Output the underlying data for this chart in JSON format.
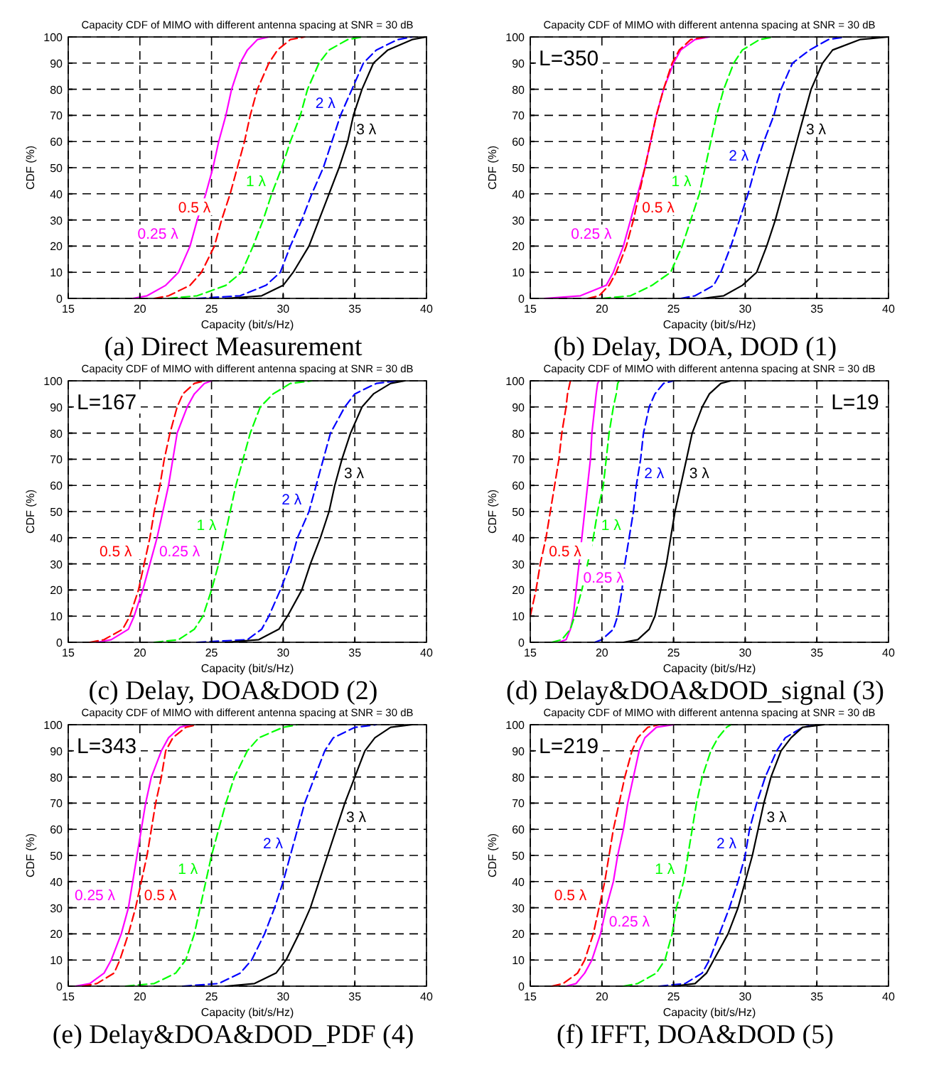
{
  "chart_data": [
    {
      "type": "line",
      "title": "Capacity CDF of MIMO with different antenna spacing at SNR = 30 dB",
      "subtitle": "(a) Direct Measurement",
      "xlabel": "Capacity (bit/s/Hz)",
      "ylabel": "CDF (%)",
      "xlim": [
        15,
        40
      ],
      "ylim": [
        0,
        100
      ],
      "xticks": [
        15,
        20,
        25,
        30,
        35,
        40
      ],
      "yticks": [
        0,
        10,
        20,
        30,
        40,
        50,
        60,
        70,
        80,
        90,
        100
      ],
      "grid": true,
      "series": [
        {
          "name": "0.25 λ",
          "color": "#ff00ff",
          "line_style": "solid",
          "x": [
            19.5,
            20.5,
            21.8,
            22.7,
            23.5,
            24,
            24.6,
            25.1,
            25.5,
            26,
            26.4,
            27,
            27.5,
            28.2,
            29
          ],
          "values": [
            0,
            1,
            5,
            10,
            20,
            30,
            40,
            50,
            60,
            70,
            80,
            90,
            95,
            99,
            100
          ]
        },
        {
          "name": "0.5 λ",
          "color": "#ff0000",
          "line_style": "dashed",
          "x": [
            21,
            22,
            23.5,
            24.3,
            25.2,
            25.7,
            26.3,
            26.8,
            27.3,
            27.7,
            28.2,
            29,
            29.6,
            30.5,
            31.5
          ],
          "values": [
            0,
            1,
            5,
            10,
            20,
            30,
            40,
            50,
            60,
            70,
            80,
            90,
            95,
            99,
            100
          ]
        },
        {
          "name": "1 λ",
          "color": "#00ff00",
          "line_style": "dashed",
          "x": [
            22,
            24,
            26,
            27.1,
            27.9,
            28.6,
            29.2,
            29.9,
            30.5,
            31.2,
            31.7,
            32.5,
            33.2,
            34.5,
            35.5
          ],
          "values": [
            0,
            1,
            5,
            10,
            20,
            30,
            40,
            50,
            60,
            70,
            80,
            90,
            95,
            99,
            100
          ]
        },
        {
          "name": "2 λ",
          "color": "#0000ff",
          "line_style": "dashed",
          "x": [
            24,
            27,
            28.8,
            29.8,
            30.5,
            31.3,
            32,
            32.8,
            33.4,
            34,
            34.8,
            35.6,
            36.5,
            38,
            39
          ],
          "values": [
            0,
            1,
            5,
            10,
            20,
            30,
            40,
            50,
            60,
            70,
            80,
            90,
            95,
            99,
            100
          ]
        },
        {
          "name": "3 λ",
          "color": "#000000",
          "line_style": "solid",
          "x": [
            26,
            28.5,
            30,
            30.7,
            31.8,
            32.5,
            33.2,
            33.9,
            34.5,
            34.9,
            35.5,
            36.3,
            37.3,
            39,
            40
          ],
          "values": [
            0,
            1,
            5,
            10,
            20,
            30,
            40,
            50,
            60,
            70,
            80,
            90,
            95,
            99,
            100
          ]
        }
      ]
    },
    {
      "type": "line",
      "title": "Capacity CDF of MIMO with different antenna spacing at SNR = 30 dB",
      "subtitle": "(b) Delay, DOA, DOD (1)",
      "xlabel": "Capacity (bit/s/Hz)",
      "ylabel": "CDF (%)",
      "xlim": [
        15,
        40
      ],
      "ylim": [
        0,
        100
      ],
      "xticks": [
        15,
        20,
        25,
        30,
        35,
        40
      ],
      "yticks": [
        0,
        10,
        20,
        30,
        40,
        50,
        60,
        70,
        80,
        90,
        100
      ],
      "grid": true,
      "annotations": [
        "L=350"
      ],
      "series": [
        {
          "name": "0.25 λ",
          "color": "#ff00ff",
          "line_style": "solid",
          "x": [
            16,
            18.5,
            20.3,
            20.8,
            21.5,
            22,
            22.5,
            23,
            23.4,
            23.8,
            24.3,
            25,
            25.5,
            26.5,
            27.5
          ],
          "values": [
            0,
            1,
            5,
            10,
            20,
            30,
            40,
            50,
            60,
            70,
            80,
            90,
            95,
            99,
            100
          ]
        },
        {
          "name": "0.5 λ",
          "color": "#ff0000",
          "line_style": "dashed",
          "x": [
            19,
            19.8,
            20.5,
            21,
            21.7,
            22.2,
            22.6,
            23,
            23.4,
            23.8,
            24.3,
            24.9,
            25.4,
            26.2,
            27.2
          ],
          "values": [
            0,
            1,
            5,
            10,
            20,
            30,
            40,
            50,
            60,
            70,
            80,
            90,
            95,
            99,
            100
          ]
        },
        {
          "name": "1 λ",
          "color": "#00ff00",
          "line_style": "dashed",
          "x": [
            20,
            22,
            23.5,
            24.8,
            25.6,
            26.2,
            26.8,
            27.2,
            27.6,
            28,
            28.5,
            29.2,
            29.8,
            31,
            32
          ],
          "values": [
            0,
            1,
            5,
            10,
            20,
            30,
            40,
            50,
            60,
            70,
            80,
            90,
            95,
            99,
            100
          ]
        },
        {
          "name": "2 λ",
          "color": "#0000ff",
          "line_style": "dashed",
          "x": [
            25.5,
            26.5,
            27.8,
            28.3,
            29,
            29.6,
            30.2,
            30.7,
            31.3,
            32,
            32.5,
            33.3,
            34.5,
            35.8,
            37
          ],
          "values": [
            0,
            1,
            5,
            10,
            20,
            30,
            40,
            50,
            60,
            70,
            80,
            90,
            95,
            99,
            100
          ]
        },
        {
          "name": "3 λ",
          "color": "#000000",
          "line_style": "solid",
          "x": [
            27,
            28.5,
            29.8,
            30.8,
            31.5,
            32.1,
            32.6,
            33.1,
            33.6,
            34.1,
            34.6,
            35.4,
            36.1,
            38,
            40
          ],
          "values": [
            0,
            1,
            5,
            10,
            20,
            30,
            40,
            50,
            60,
            70,
            80,
            90,
            95,
            99,
            100
          ]
        }
      ]
    },
    {
      "type": "line",
      "title": "Capacity CDF of MIMO with different antenna spacing at SNR = 30 dB",
      "subtitle": "(c) Delay, DOA&DOD (2)",
      "xlabel": "Capacity (bit/s/Hz)",
      "ylabel": "CDF (%)",
      "xlim": [
        15,
        40
      ],
      "ylim": [
        0,
        100
      ],
      "xticks": [
        15,
        20,
        25,
        30,
        35,
        40
      ],
      "yticks": [
        0,
        10,
        20,
        30,
        40,
        50,
        60,
        70,
        80,
        90,
        100
      ],
      "grid": true,
      "annotations": [
        "L=167"
      ],
      "series": [
        {
          "name": "0.25 λ",
          "color": "#ff00ff",
          "line_style": "solid",
          "x": [
            17,
            18,
            19.2,
            19.6,
            20.2,
            20.7,
            21.2,
            21.6,
            22,
            22.3,
            22.6,
            23.3,
            23.8,
            24.5,
            25
          ],
          "values": [
            0,
            1,
            5,
            10,
            20,
            30,
            40,
            50,
            60,
            70,
            80,
            90,
            95,
            99,
            100
          ]
        },
        {
          "name": "0.5 λ",
          "color": "#ff0000",
          "line_style": "dashed",
          "x": [
            16.5,
            17.5,
            18.8,
            19.3,
            19.9,
            20.3,
            20.7,
            21,
            21.4,
            21.7,
            22.1,
            22.6,
            23,
            23.8,
            24.5
          ],
          "values": [
            0,
            1,
            5,
            10,
            20,
            30,
            40,
            50,
            60,
            70,
            80,
            90,
            95,
            99,
            100
          ]
        },
        {
          "name": "1 λ",
          "color": "#00ff00",
          "line_style": "dashed",
          "x": [
            21,
            22.7,
            23.8,
            24.4,
            25,
            25.5,
            25.9,
            26.3,
            26.7,
            27.2,
            27.7,
            28.4,
            29.3,
            30.5,
            32
          ],
          "values": [
            0,
            1,
            5,
            10,
            20,
            30,
            40,
            50,
            60,
            70,
            80,
            90,
            95,
            99,
            100
          ]
        },
        {
          "name": "2 λ",
          "color": "#0000ff",
          "line_style": "dashed",
          "x": [
            24,
            27.5,
            28.5,
            29,
            29.8,
            30.5,
            31,
            31.8,
            32.3,
            32.8,
            33.3,
            34.3,
            35,
            36.5,
            38
          ],
          "values": [
            0,
            1,
            5,
            10,
            20,
            30,
            40,
            50,
            60,
            70,
            80,
            90,
            95,
            99,
            100
          ]
        },
        {
          "name": "3 λ",
          "color": "#000000",
          "line_style": "solid",
          "x": [
            26,
            28.3,
            29.7,
            30.3,
            31.3,
            31.9,
            32.6,
            33.2,
            33.6,
            34.1,
            34.7,
            35.5,
            36.3,
            37.5,
            38.5
          ],
          "values": [
            0,
            1,
            5,
            10,
            20,
            30,
            40,
            50,
            60,
            70,
            80,
            90,
            95,
            99,
            100
          ]
        }
      ]
    },
    {
      "type": "line",
      "title": "Capacity CDF of MIMO with different antenna spacing at SNR = 30 dB",
      "subtitle": "(d) Delay&DOA&DOD_signal (3)",
      "xlabel": "Capacity (bit/s/Hz)",
      "ylabel": "CDF (%)",
      "xlim": [
        15,
        40
      ],
      "ylim": [
        0,
        100
      ],
      "xticks": [
        15,
        20,
        25,
        30,
        35,
        40
      ],
      "yticks": [
        0,
        10,
        20,
        30,
        40,
        50,
        60,
        70,
        80,
        90,
        100
      ],
      "grid": true,
      "annotations": [
        "L=19"
      ],
      "series": [
        {
          "name": "0.25 λ",
          "color": "#ff00ff",
          "line_style": "solid",
          "x": [
            17,
            17.5,
            17.8,
            18,
            18.2,
            18.4,
            18.6,
            18.8,
            19,
            19.2,
            19.3,
            19.5,
            19.6,
            19.7,
            19.8
          ],
          "values": [
            0,
            1,
            5,
            10,
            20,
            30,
            40,
            50,
            60,
            70,
            80,
            90,
            95,
            99,
            100
          ]
        },
        {
          "name": "0.5 λ",
          "color": "#ff0000",
          "line_style": "dashed",
          "x": [
            15,
            15.4,
            15.7,
            16.1,
            16.4,
            16.7,
            17,
            17.2,
            17.5,
            17.6,
            17.8
          ],
          "values": [
            10,
            20,
            30,
            40,
            50,
            60,
            70,
            80,
            90,
            95,
            100
          ]
        },
        {
          "name": "1 λ",
          "color": "#00ff00",
          "line_style": "dashed",
          "x": [
            16.5,
            17.2,
            17.8,
            18.1,
            18.6,
            19,
            19.4,
            19.7,
            20.1,
            20.3,
            20.5,
            20.8,
            21,
            21.1,
            21.2
          ],
          "values": [
            0,
            1,
            5,
            10,
            20,
            30,
            40,
            50,
            60,
            70,
            80,
            90,
            95,
            99,
            100
          ]
        },
        {
          "name": "2 λ",
          "color": "#0000ff",
          "line_style": "dashed",
          "x": [
            19.5,
            20,
            20.8,
            21.1,
            21.4,
            21.6,
            21.9,
            22.2,
            22.4,
            22.7,
            22.9,
            23.3,
            23.7,
            24.3,
            25
          ],
          "values": [
            0,
            1,
            5,
            10,
            20,
            30,
            40,
            50,
            60,
            70,
            80,
            90,
            95,
            99,
            100
          ]
        },
        {
          "name": "3 λ",
          "color": "#000000",
          "line_style": "solid",
          "x": [
            21.5,
            22.5,
            23.3,
            23.7,
            24.1,
            24.5,
            24.8,
            25.1,
            25.5,
            25.9,
            26.3,
            27,
            27.5,
            28.3,
            29
          ],
          "values": [
            0,
            1,
            5,
            10,
            20,
            30,
            40,
            50,
            60,
            70,
            80,
            90,
            95,
            99,
            100
          ]
        }
      ]
    },
    {
      "type": "line",
      "title": "Capacity CDF of MIMO with different antenna spacing at SNR = 30 dB",
      "subtitle": "(e) Delay&DOA&DOD_PDF (4)",
      "xlabel": "Capacity (bit/s/Hz)",
      "ylabel": "CDF (%)",
      "xlim": [
        15,
        40
      ],
      "ylim": [
        0,
        100
      ],
      "xticks": [
        15,
        20,
        25,
        30,
        35,
        40
      ],
      "yticks": [
        0,
        10,
        20,
        30,
        40,
        50,
        60,
        70,
        80,
        90,
        100
      ],
      "grid": true,
      "annotations": [
        "L=343"
      ],
      "series": [
        {
          "name": "0.25 λ",
          "color": "#ff00ff",
          "line_style": "solid",
          "x": [
            15.5,
            16.5,
            17.5,
            18,
            18.7,
            19.2,
            19.5,
            19.8,
            20.1,
            20.4,
            20.8,
            21.5,
            22,
            22.8,
            23.5
          ],
          "values": [
            0,
            1,
            5,
            10,
            20,
            30,
            40,
            50,
            60,
            70,
            80,
            90,
            95,
            99,
            100
          ]
        },
        {
          "name": "0.5 λ",
          "color": "#ff0000",
          "line_style": "dashed",
          "x": [
            16,
            17,
            18.2,
            18.6,
            19.2,
            19.7,
            20.1,
            20.5,
            20.8,
            21.1,
            21.5,
            21.8,
            22.3,
            23.2,
            24
          ],
          "values": [
            0,
            1,
            5,
            10,
            20,
            30,
            40,
            50,
            60,
            70,
            80,
            90,
            95,
            99,
            100
          ]
        },
        {
          "name": "1 λ",
          "color": "#00ff00",
          "line_style": "dashed",
          "x": [
            19,
            21,
            22.5,
            23.2,
            23.8,
            24.2,
            24.6,
            25,
            25.5,
            26,
            26.6,
            27.5,
            28.3,
            30,
            31
          ],
          "values": [
            0,
            1,
            5,
            10,
            20,
            30,
            40,
            50,
            60,
            70,
            80,
            90,
            95,
            99,
            100
          ]
        },
        {
          "name": "2 λ",
          "color": "#0000ff",
          "line_style": "dashed",
          "x": [
            23,
            25.5,
            27,
            27.8,
            28.7,
            29.4,
            30,
            30.5,
            31,
            31.5,
            32.2,
            32.9,
            33.5,
            35,
            36.5
          ],
          "values": [
            0,
            1,
            5,
            10,
            20,
            30,
            40,
            50,
            60,
            70,
            80,
            90,
            95,
            99,
            100
          ]
        },
        {
          "name": "3 λ",
          "color": "#000000",
          "line_style": "solid",
          "x": [
            26,
            28,
            29.5,
            30.2,
            31.1,
            31.9,
            32.5,
            33.1,
            33.7,
            34.3,
            35,
            35.7,
            36.4,
            37.5,
            39
          ],
          "values": [
            0,
            1,
            5,
            10,
            20,
            30,
            40,
            50,
            60,
            70,
            80,
            90,
            95,
            99,
            100
          ]
        }
      ]
    },
    {
      "type": "line",
      "title": "Capacity CDF of MIMO with different antenna spacing at SNR = 30 dB",
      "subtitle": "(f) IFFT, DOA&DOD (5)",
      "xlabel": "Capacity (bit/s/Hz)",
      "ylabel": "CDF (%)",
      "xlim": [
        15,
        40
      ],
      "ylim": [
        0,
        100
      ],
      "xticks": [
        15,
        20,
        25,
        30,
        35,
        40
      ],
      "yticks": [
        0,
        10,
        20,
        30,
        40,
        50,
        60,
        70,
        80,
        90,
        100
      ],
      "grid": true,
      "annotations": [
        "L=219"
      ],
      "series": [
        {
          "name": "0.25 λ",
          "color": "#ff00ff",
          "line_style": "solid",
          "x": [
            17.5,
            18.2,
            18.8,
            19.3,
            19.9,
            20.3,
            20.8,
            21.1,
            21.5,
            21.8,
            22.2,
            22.6,
            23,
            23.8,
            25
          ],
          "values": [
            0,
            1,
            5,
            10,
            20,
            30,
            40,
            50,
            60,
            70,
            80,
            90,
            95,
            99,
            100
          ]
        },
        {
          "name": "0.5 λ",
          "color": "#ff0000",
          "line_style": "dashed",
          "x": [
            16.5,
            17.3,
            18.3,
            18.8,
            19.4,
            19.8,
            20.2,
            20.5,
            20.8,
            21.2,
            21.6,
            22.1,
            22.5,
            23.2,
            24
          ],
          "values": [
            0,
            1,
            5,
            10,
            20,
            30,
            40,
            50,
            60,
            70,
            80,
            90,
            95,
            99,
            100
          ]
        },
        {
          "name": "1 λ",
          "color": "#00ff00",
          "line_style": "dashed",
          "x": [
            21.5,
            22.5,
            23.8,
            24.4,
            24.9,
            25.2,
            25.7,
            26,
            26.3,
            26.6,
            27,
            27.6,
            28.1,
            28.7,
            29
          ],
          "values": [
            0,
            1,
            5,
            10,
            20,
            30,
            40,
            50,
            60,
            70,
            80,
            90,
            95,
            99,
            100
          ]
        },
        {
          "name": "2 λ",
          "color": "#0000ff",
          "line_style": "dashed",
          "x": [
            24,
            25.8,
            27,
            27.5,
            28.2,
            28.9,
            29.5,
            30,
            30.3,
            30.8,
            31.4,
            32.2,
            32.8,
            34,
            35
          ],
          "values": [
            0,
            1,
            5,
            10,
            20,
            30,
            40,
            50,
            60,
            70,
            80,
            90,
            95,
            99,
            100
          ]
        },
        {
          "name": "3 λ",
          "color": "#000000",
          "line_style": "solid",
          "x": [
            25,
            26.5,
            27.3,
            27.8,
            28.8,
            29.5,
            30,
            30.5,
            30.9,
            31.3,
            31.8,
            32.5,
            33.2,
            34,
            35.5
          ],
          "values": [
            0,
            1,
            5,
            10,
            20,
            30,
            40,
            50,
            60,
            70,
            80,
            90,
            95,
            99,
            100
          ]
        }
      ]
    }
  ]
}
